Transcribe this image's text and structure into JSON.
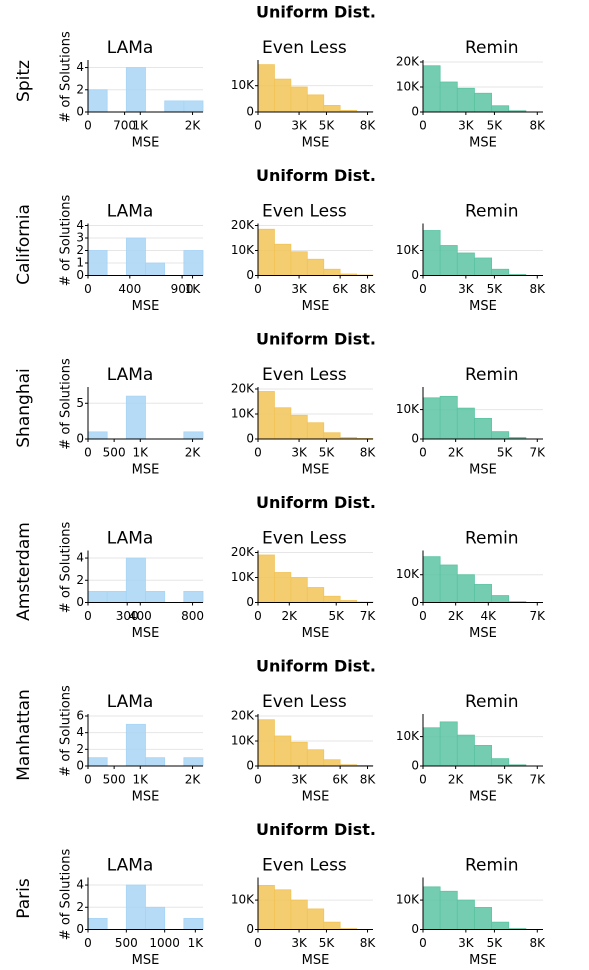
{
  "chart_data": [
    {
      "type": "histogram",
      "suptitle": "Uniform Dist.",
      "row_label": "Spitz",
      "title": "LAMa",
      "ylabel": "# of Solutions",
      "xlabel": "MSE",
      "color": "#a8d5f5",
      "bins": [
        0,
        367,
        733,
        1100,
        1467,
        1833,
        2200
      ],
      "counts": [
        2,
        0,
        4,
        0,
        1,
        1
      ],
      "xlim": [
        0,
        2200
      ],
      "xticks": [
        0,
        700,
        {
          "value": 1000,
          "label": "1K"
        },
        {
          "value": 2000,
          "label": "2K"
        }
      ],
      "ylim": [
        0,
        4.5
      ],
      "yticks": [
        0,
        2,
        4
      ]
    },
    {
      "type": "histogram",
      "title": "Even Less",
      "xlabel": "MSE",
      "color": "#f2c458",
      "bins": [
        0,
        1200,
        2400,
        3600,
        4800,
        6000,
        7200,
        8400
      ],
      "counts": [
        18000,
        12500,
        9500,
        6500,
        2500,
        600,
        200
      ],
      "xlim": [
        0,
        8400
      ],
      "xticks": [
        0,
        {
          "value": 3000,
          "label": "3K"
        },
        {
          "value": 5000,
          "label": "5K"
        },
        {
          "value": 8000,
          "label": "8K"
        }
      ],
      "ylim": [
        0,
        19000
      ],
      "yticks": [
        0,
        {
          "value": 10000,
          "label": "10K"
        }
      ]
    },
    {
      "type": "histogram",
      "title": "Remin",
      "xlabel": "MSE",
      "color": "#5cc4a2",
      "bins": [
        0,
        1200,
        2400,
        3600,
        4800,
        6000,
        7200,
        8400
      ],
      "counts": [
        18500,
        12000,
        9500,
        7500,
        2500,
        500,
        0
      ],
      "xlim": [
        0,
        8400
      ],
      "xticks": [
        0,
        {
          "value": 3000,
          "label": "3K"
        },
        {
          "value": 5000,
          "label": "5K"
        },
        {
          "value": 8000,
          "label": "8K"
        }
      ],
      "ylim": [
        0,
        20000
      ],
      "yticks": [
        0,
        {
          "value": 10000,
          "label": "10K"
        },
        {
          "value": 20000,
          "label": "20K"
        }
      ]
    },
    {
      "type": "histogram",
      "suptitle": "Uniform Dist.",
      "row_label": "California",
      "title": "LAMa",
      "ylabel": "# of Solutions",
      "xlabel": "MSE",
      "color": "#a8d5f5",
      "bins": [
        0,
        183,
        367,
        550,
        733,
        917,
        1100
      ],
      "counts": [
        2,
        0,
        3,
        1,
        0,
        2
      ],
      "xlim": [
        0,
        1100
      ],
      "xticks": [
        0,
        400,
        900,
        {
          "value": 1000,
          "label": "1K"
        }
      ],
      "ylim": [
        0,
        4
      ],
      "yticks": [
        0,
        1,
        2,
        3,
        4
      ]
    },
    {
      "type": "histogram",
      "title": "Even Less",
      "xlabel": "MSE",
      "color": "#f2c458",
      "bins": [
        0,
        1200,
        2400,
        3600,
        4800,
        6000,
        7200,
        8400
      ],
      "counts": [
        18500,
        12500,
        9500,
        6500,
        2500,
        600,
        200
      ],
      "xlim": [
        0,
        8400
      ],
      "xticks": [
        0,
        {
          "value": 3000,
          "label": "3K"
        },
        {
          "value": 6000,
          "label": "6K"
        },
        {
          "value": 8000,
          "label": "8K"
        }
      ],
      "ylim": [
        0,
        20000
      ],
      "yticks": [
        0,
        {
          "value": 10000,
          "label": "10K"
        },
        {
          "value": 20000,
          "label": "20K"
        }
      ]
    },
    {
      "type": "histogram",
      "title": "Remin",
      "xlabel": "MSE",
      "color": "#5cc4a2",
      "bins": [
        0,
        1200,
        2400,
        3600,
        4800,
        6000,
        7200,
        8400
      ],
      "counts": [
        18000,
        12000,
        9000,
        7000,
        2500,
        400,
        0
      ],
      "xlim": [
        0,
        8400
      ],
      "xticks": [
        0,
        {
          "value": 3000,
          "label": "3K"
        },
        {
          "value": 5000,
          "label": "5K"
        },
        {
          "value": 8000,
          "label": "8K"
        }
      ],
      "ylim": [
        0,
        20000
      ],
      "yticks": [
        0,
        {
          "value": 10000,
          "label": "10K"
        }
      ]
    },
    {
      "type": "histogram",
      "suptitle": "Uniform Dist.",
      "row_label": "Shanghai",
      "title": "LAMa",
      "ylabel": "# of Solutions",
      "xlabel": "MSE",
      "color": "#a8d5f5",
      "bins": [
        0,
        367,
        733,
        1100,
        1467,
        1833,
        2200
      ],
      "counts": [
        1,
        0,
        6,
        0,
        0,
        1
      ],
      "xlim": [
        0,
        2200
      ],
      "xticks": [
        0,
        500,
        {
          "value": 1000,
          "label": "1K"
        },
        {
          "value": 2000,
          "label": "2K"
        }
      ],
      "ylim": [
        0,
        7
      ],
      "yticks": [
        0,
        5
      ]
    },
    {
      "type": "histogram",
      "title": "Even Less",
      "xlabel": "MSE",
      "color": "#f2c458",
      "bins": [
        0,
        1200,
        2400,
        3600,
        4800,
        6000,
        7200,
        8400
      ],
      "counts": [
        19000,
        12500,
        9500,
        6500,
        2500,
        600,
        200
      ],
      "xlim": [
        0,
        8400
      ],
      "xticks": [
        0,
        {
          "value": 3000,
          "label": "3K"
        },
        {
          "value": 5000,
          "label": "5K"
        },
        {
          "value": 8000,
          "label": "8K"
        }
      ],
      "ylim": [
        0,
        20000
      ],
      "yticks": [
        0,
        {
          "value": 10000,
          "label": "10K"
        },
        {
          "value": 20000,
          "label": "20K"
        }
      ]
    },
    {
      "type": "histogram",
      "title": "Remin",
      "xlabel": "MSE",
      "color": "#5cc4a2",
      "bins": [
        0,
        1050,
        2100,
        3150,
        4200,
        5250,
        6300,
        7350
      ],
      "counts": [
        14000,
        14500,
        10500,
        7000,
        2500,
        500,
        0
      ],
      "xlim": [
        0,
        7350
      ],
      "xticks": [
        0,
        {
          "value": 2000,
          "label": "2K"
        },
        {
          "value": 5000,
          "label": "5K"
        },
        {
          "value": 7000,
          "label": "7K"
        }
      ],
      "ylim": [
        0,
        17000
      ],
      "yticks": [
        0,
        {
          "value": 10000,
          "label": "10K"
        }
      ]
    },
    {
      "type": "histogram",
      "suptitle": "Uniform Dist.",
      "row_label": "Amsterdam",
      "title": "LAMa",
      "ylabel": "# of Solutions",
      "xlabel": "MSE",
      "color": "#a8d5f5",
      "bins": [
        0,
        147,
        293,
        440,
        587,
        733,
        880
      ],
      "counts": [
        1,
        1,
        4,
        1,
        0,
        1
      ],
      "xlim": [
        0,
        880
      ],
      "xticks": [
        0,
        300,
        400,
        800
      ],
      "ylim": [
        0,
        4.5
      ],
      "yticks": [
        0,
        2,
        4
      ]
    },
    {
      "type": "histogram",
      "title": "Even Less",
      "xlabel": "MSE",
      "color": "#f2c458",
      "bins": [
        0,
        1050,
        2100,
        3150,
        4200,
        5250,
        6300,
        7350
      ],
      "counts": [
        19000,
        12000,
        10000,
        6000,
        2500,
        800,
        200
      ],
      "xlim": [
        0,
        7350
      ],
      "xticks": [
        0,
        {
          "value": 2000,
          "label": "2K"
        },
        {
          "value": 5000,
          "label": "5K"
        },
        {
          "value": 7000,
          "label": "7K"
        }
      ],
      "ylim": [
        0,
        20000
      ],
      "yticks": [
        0,
        {
          "value": 10000,
          "label": "10K"
        },
        {
          "value": 20000,
          "label": "20K"
        }
      ]
    },
    {
      "type": "histogram",
      "title": "Remin",
      "xlabel": "MSE",
      "color": "#5cc4a2",
      "bins": [
        0,
        1050,
        2100,
        3150,
        4200,
        5250,
        6300,
        7350
      ],
      "counts": [
        16500,
        13500,
        10000,
        6500,
        2500,
        300,
        0
      ],
      "xlim": [
        0,
        7350
      ],
      "xticks": [
        0,
        {
          "value": 2000,
          "label": "2K"
        },
        {
          "value": 4000,
          "label": "4K"
        },
        {
          "value": 7000,
          "label": "7K"
        }
      ],
      "ylim": [
        0,
        18000
      ],
      "yticks": [
        0,
        {
          "value": 10000,
          "label": "10K"
        }
      ]
    },
    {
      "type": "histogram",
      "suptitle": "Uniform Dist.",
      "row_label": "Manhattan",
      "title": "LAMa",
      "ylabel": "# of Solutions",
      "xlabel": "MSE",
      "color": "#a8d5f5",
      "bins": [
        0,
        367,
        733,
        1100,
        1467,
        1833,
        2200
      ],
      "counts": [
        1,
        0,
        5,
        1,
        0,
        1
      ],
      "xlim": [
        0,
        2200
      ],
      "xticks": [
        0,
        500,
        {
          "value": 1000,
          "label": "1K"
        },
        {
          "value": 2000,
          "label": "2K"
        }
      ],
      "ylim": [
        0,
        6
      ],
      "yticks": [
        0,
        2,
        4,
        6
      ]
    },
    {
      "type": "histogram",
      "title": "Even Less",
      "xlabel": "MSE",
      "color": "#f2c458",
      "bins": [
        0,
        1200,
        2400,
        3600,
        4800,
        6000,
        7200,
        8400
      ],
      "counts": [
        18500,
        12000,
        9500,
        6500,
        2500,
        500,
        200
      ],
      "xlim": [
        0,
        8400
      ],
      "xticks": [
        0,
        {
          "value": 3000,
          "label": "3K"
        },
        {
          "value": 6000,
          "label": "6K"
        },
        {
          "value": 8000,
          "label": "8K"
        }
      ],
      "ylim": [
        0,
        20000
      ],
      "yticks": [
        0,
        {
          "value": 10000,
          "label": "10K"
        },
        {
          "value": 20000,
          "label": "20K"
        }
      ]
    },
    {
      "type": "histogram",
      "title": "Remin",
      "xlabel": "MSE",
      "color": "#5cc4a2",
      "bins": [
        0,
        1050,
        2100,
        3150,
        4200,
        5250,
        6300,
        7350
      ],
      "counts": [
        13000,
        15000,
        10500,
        7000,
        2500,
        400,
        0
      ],
      "xlim": [
        0,
        7350
      ],
      "xticks": [
        0,
        {
          "value": 2000,
          "label": "2K"
        },
        {
          "value": 5000,
          "label": "5K"
        },
        {
          "value": 7000,
          "label": "7K"
        }
      ],
      "ylim": [
        0,
        17000
      ],
      "yticks": [
        0,
        {
          "value": 10000,
          "label": "10K"
        }
      ]
    },
    {
      "type": "histogram",
      "suptitle": "Uniform Dist.",
      "row_label": "Paris",
      "title": "LAMa",
      "ylabel": "# of Solutions",
      "xlabel": "MSE",
      "color": "#a8d5f5",
      "bins": [
        0,
        250,
        500,
        750,
        1000,
        1250,
        1500
      ],
      "counts": [
        1,
        0,
        4,
        2,
        0,
        1
      ],
      "xlim": [
        0,
        1500
      ],
      "xticks": [
        0,
        500,
        1000,
        {
          "value": 1400,
          "label": "1K"
        }
      ],
      "ylim": [
        0,
        4.5
      ],
      "yticks": [
        0,
        2,
        4
      ]
    },
    {
      "type": "histogram",
      "title": "Even Less",
      "xlabel": "MSE",
      "color": "#f2c458",
      "bins": [
        0,
        1200,
        2400,
        3600,
        4800,
        6000,
        7200,
        8400
      ],
      "counts": [
        15000,
        13500,
        10000,
        7000,
        2500,
        300,
        0
      ],
      "xlim": [
        0,
        8400
      ],
      "xticks": [
        0,
        {
          "value": 3000,
          "label": "3K"
        },
        {
          "value": 5000,
          "label": "5K"
        },
        {
          "value": 8000,
          "label": "8K"
        }
      ],
      "ylim": [
        0,
        17000
      ],
      "yticks": [
        0,
        {
          "value": 10000,
          "label": "10K"
        }
      ]
    },
    {
      "type": "histogram",
      "title": "Remin",
      "xlabel": "MSE",
      "color": "#5cc4a2",
      "bins": [
        0,
        1200,
        2400,
        3600,
        4800,
        6000,
        7200,
        8400
      ],
      "counts": [
        14500,
        13000,
        10000,
        7500,
        2500,
        300,
        0
      ],
      "xlim": [
        0,
        8400
      ],
      "xticks": [
        0,
        {
          "value": 3000,
          "label": "3K"
        },
        {
          "value": 5000,
          "label": "5K"
        },
        {
          "value": 8000,
          "label": "8K"
        }
      ],
      "ylim": [
        0,
        17000
      ],
      "yticks": [
        0,
        {
          "value": 10000,
          "label": "10K"
        }
      ]
    }
  ]
}
